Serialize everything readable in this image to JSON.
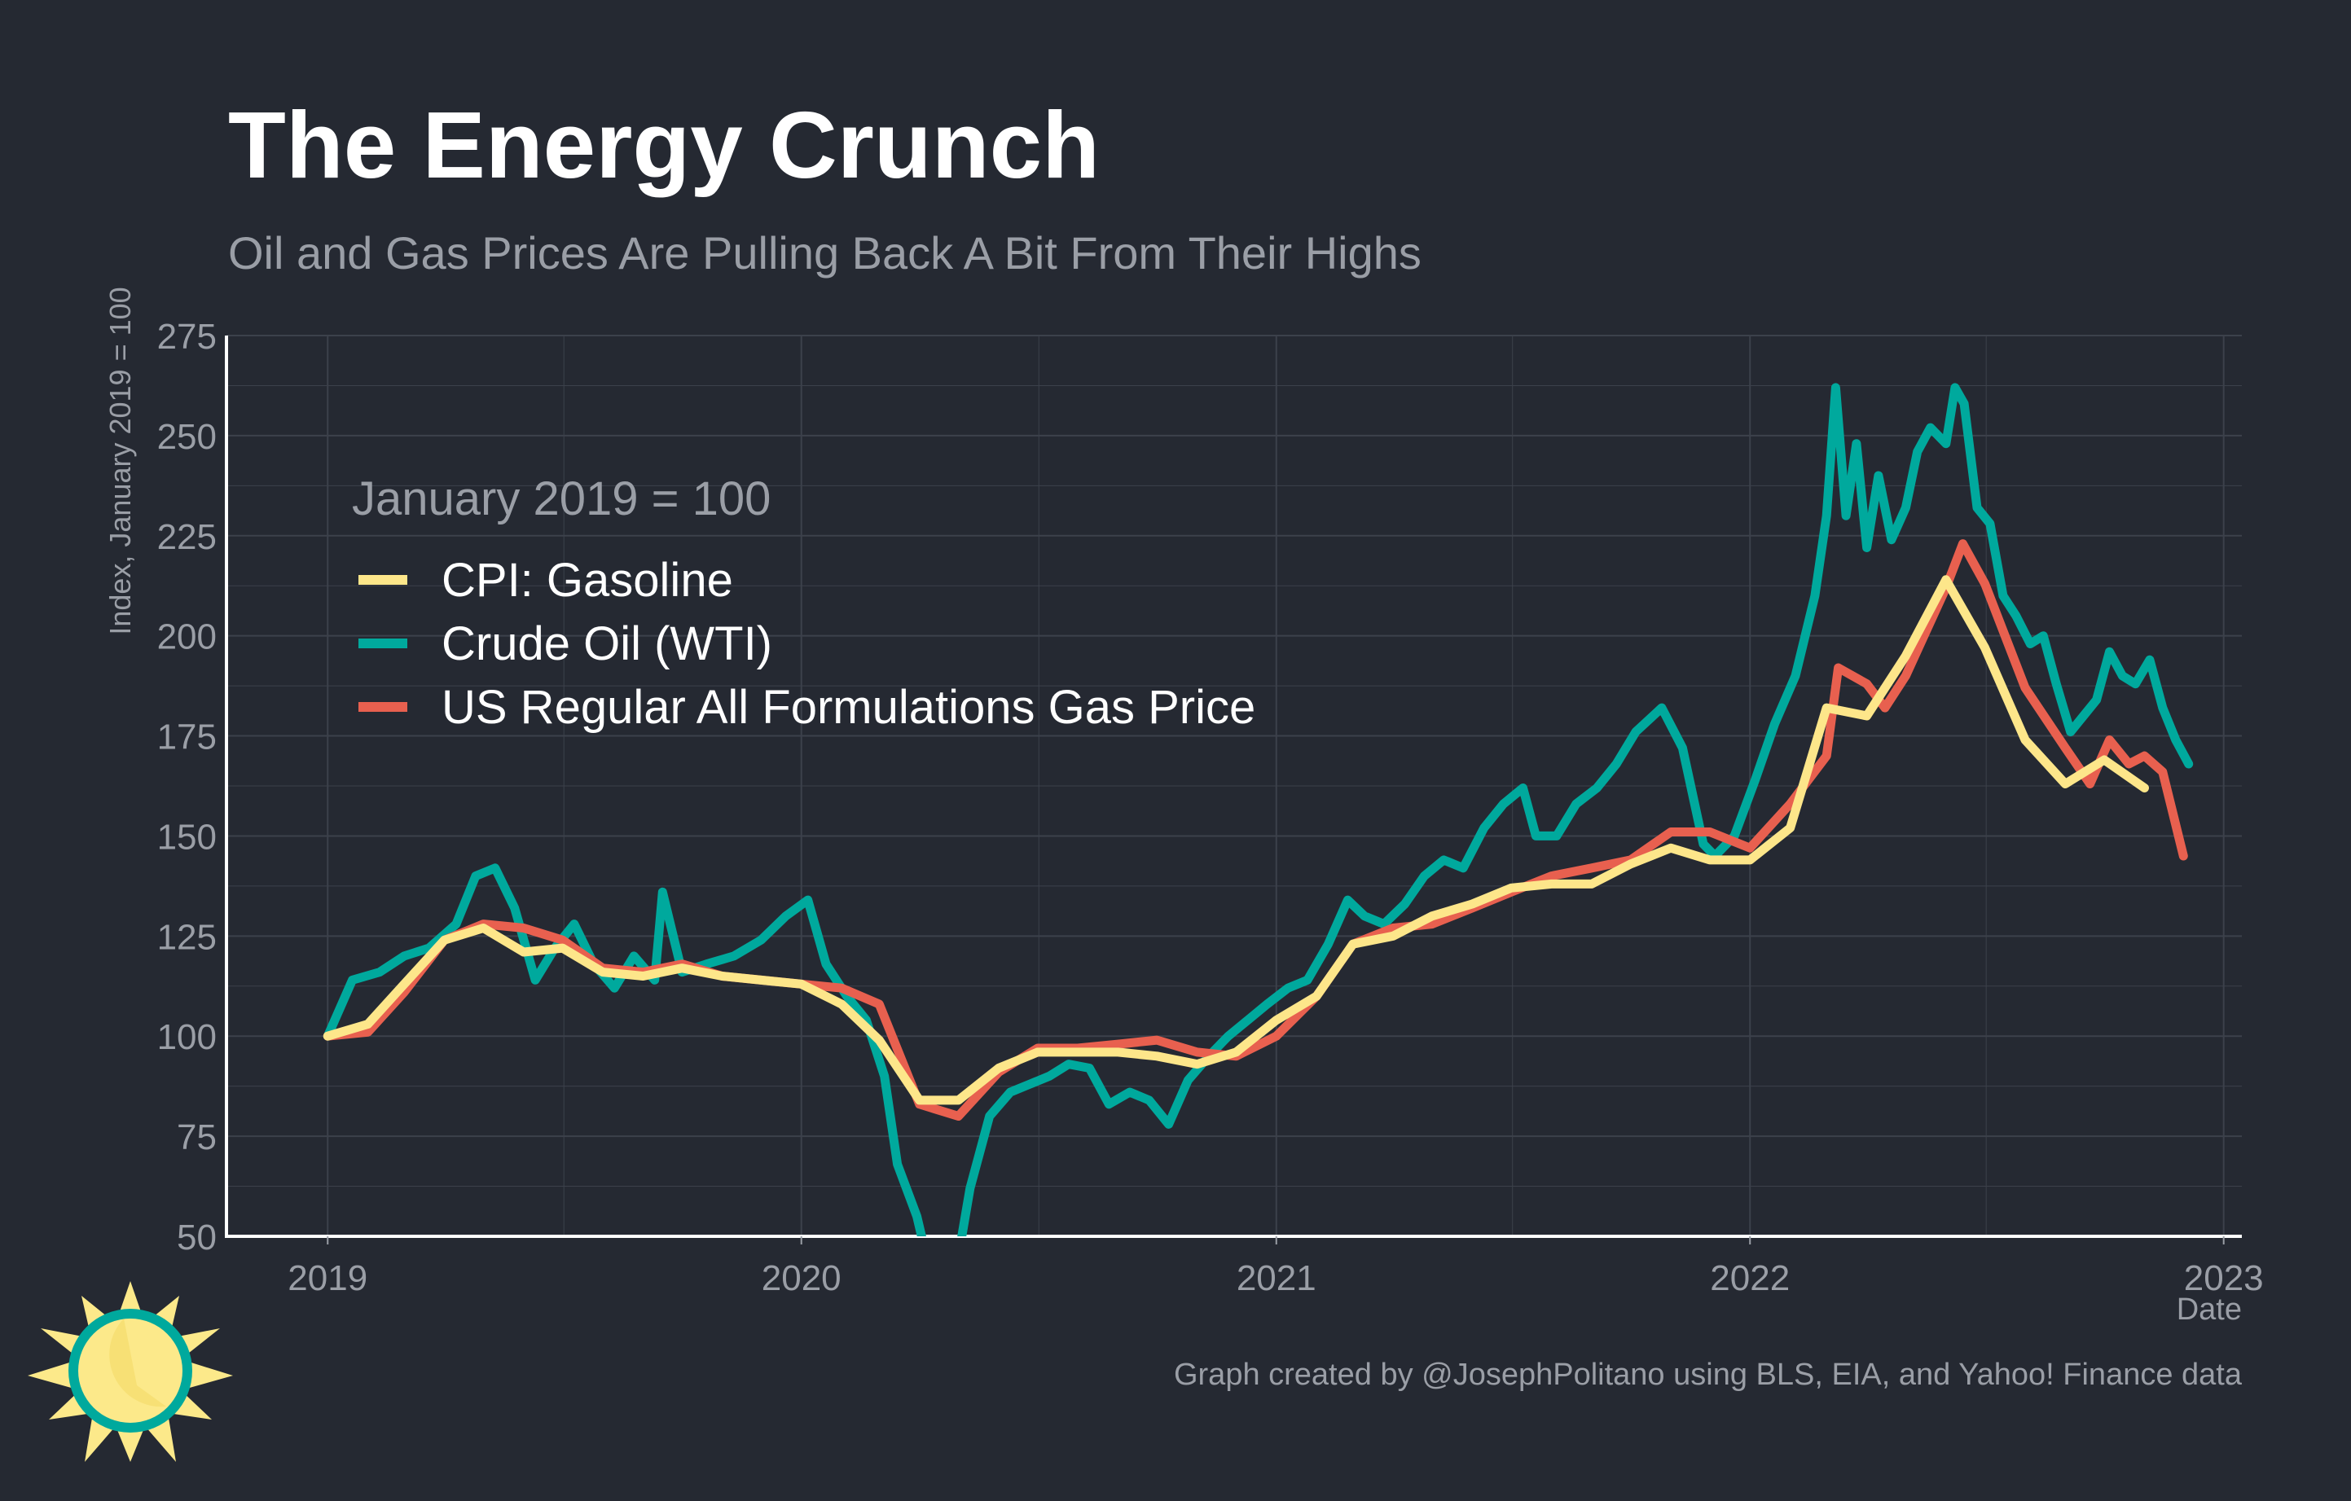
{
  "chart_data": {
    "type": "line",
    "title": "The Energy Crunch",
    "subtitle": "Oil and Gas Prices Are Pulling Back A Bit From Their Highs",
    "xlabel": "Date",
    "ylabel": "Index, January 2019 = 100",
    "legend_title": "January 2019 = 100",
    "legend_position": "top-left inside",
    "caption": "Graph created by @JosephPolitano using BLS, EIA, and Yahoo! Finance data",
    "xlim": [
      "2018-10-15",
      "2023-01-15"
    ],
    "ylim": [
      50,
      275
    ],
    "x_ticks": [
      "2019",
      "2020",
      "2021",
      "2022",
      "2023"
    ],
    "y_ticks": [
      50,
      75,
      100,
      125,
      150,
      175,
      200,
      225,
      250,
      275
    ],
    "grid": true,
    "colors": {
      "background": "#252932",
      "grid": "#3c414b",
      "axis": "#ffffff",
      "muted_text": "#9a9ea6",
      "logo_sun": "#fce98a",
      "logo_ring": "#00a99d"
    },
    "series": [
      {
        "name": "CPI: Gasoline",
        "color": "#fde68a",
        "x": [
          "2019-01-01",
          "2019-02-01",
          "2019-03-01",
          "2019-04-01",
          "2019-05-01",
          "2019-06-01",
          "2019-07-01",
          "2019-08-01",
          "2019-09-01",
          "2019-10-01",
          "2019-11-01",
          "2019-12-01",
          "2020-01-01",
          "2020-02-01",
          "2020-03-01",
          "2020-04-01",
          "2020-05-01",
          "2020-06-01",
          "2020-07-01",
          "2020-08-01",
          "2020-09-01",
          "2020-10-01",
          "2020-11-01",
          "2020-12-01",
          "2021-01-01",
          "2021-02-01",
          "2021-03-01",
          "2021-04-01",
          "2021-05-01",
          "2021-06-01",
          "2021-07-01",
          "2021-08-01",
          "2021-09-01",
          "2021-10-01",
          "2021-11-01",
          "2021-12-01",
          "2022-01-01",
          "2022-02-01",
          "2022-03-01",
          "2022-04-01",
          "2022-05-01",
          "2022-06-01",
          "2022-07-01",
          "2022-08-01",
          "2022-09-01",
          "2022-10-01",
          "2022-11-01"
        ],
        "values": [
          100,
          103,
          113,
          124,
          127,
          121,
          122,
          116,
          115,
          117,
          115,
          114,
          113,
          108,
          99,
          84,
          84,
          92,
          96,
          96,
          96,
          95,
          93,
          96,
          104,
          110,
          123,
          125,
          130,
          133,
          137,
          138,
          138,
          143,
          147,
          144,
          144,
          152,
          182,
          180,
          195,
          214,
          197,
          174,
          163,
          169,
          162
        ]
      },
      {
        "name": "Crude Oil (WTI)",
        "color": "#00a99d",
        "x": [
          "2019-01-01",
          "2019-01-20",
          "2019-02-10",
          "2019-03-01",
          "2019-03-20",
          "2019-04-10",
          "2019-04-25",
          "2019-05-10",
          "2019-05-25",
          "2019-06-10",
          "2019-06-25",
          "2019-07-10",
          "2019-07-25",
          "2019-08-10",
          "2019-08-25",
          "2019-09-10",
          "2019-09-16",
          "2019-10-01",
          "2019-10-20",
          "2019-11-10",
          "2019-12-01",
          "2019-12-20",
          "2020-01-06",
          "2020-01-20",
          "2020-02-05",
          "2020-02-20",
          "2020-03-05",
          "2020-03-15",
          "2020-03-30",
          "2020-04-10",
          "2020-04-20",
          "2020-05-01",
          "2020-05-10",
          "2020-05-25",
          "2020-06-10",
          "2020-06-25",
          "2020-07-10",
          "2020-07-25",
          "2020-08-10",
          "2020-08-25",
          "2020-09-10",
          "2020-09-25",
          "2020-10-10",
          "2020-10-25",
          "2020-11-10",
          "2020-11-25",
          "2020-12-10",
          "2020-12-25",
          "2021-01-10",
          "2021-01-25",
          "2021-02-10",
          "2021-02-25",
          "2021-03-10",
          "2021-03-25",
          "2021-04-10",
          "2021-04-25",
          "2021-05-10",
          "2021-05-25",
          "2021-06-10",
          "2021-06-25",
          "2021-07-10",
          "2021-07-20",
          "2021-08-05",
          "2021-08-20",
          "2021-09-05",
          "2021-09-20",
          "2021-10-05",
          "2021-10-25",
          "2021-11-10",
          "2021-11-26",
          "2021-12-05",
          "2021-12-20",
          "2022-01-05",
          "2022-01-20",
          "2022-02-05",
          "2022-02-20",
          "2022-03-01",
          "2022-03-08",
          "2022-03-16",
          "2022-03-24",
          "2022-04-01",
          "2022-04-10",
          "2022-04-20",
          "2022-05-01",
          "2022-05-10",
          "2022-05-20",
          "2022-06-01",
          "2022-06-08",
          "2022-06-15",
          "2022-06-25",
          "2022-07-05",
          "2022-07-15",
          "2022-07-25",
          "2022-08-05",
          "2022-08-15",
          "2022-08-25",
          "2022-09-05",
          "2022-09-15",
          "2022-09-25",
          "2022-10-05",
          "2022-10-15",
          "2022-10-25",
          "2022-11-05",
          "2022-11-15",
          "2022-11-25",
          "2022-12-05"
        ],
        "values": [
          100,
          114,
          116,
          120,
          122,
          128,
          140,
          142,
          132,
          114,
          122,
          128,
          118,
          112,
          120,
          114,
          136,
          116,
          118,
          120,
          124,
          130,
          134,
          118,
          110,
          104,
          90,
          68,
          55,
          40,
          25,
          45,
          62,
          80,
          86,
          88,
          90,
          93,
          92,
          83,
          86,
          84,
          78,
          89,
          95,
          100,
          104,
          108,
          112,
          114,
          123,
          134,
          130,
          128,
          133,
          140,
          144,
          142,
          152,
          158,
          162,
          150,
          150,
          158,
          162,
          168,
          176,
          182,
          172,
          148,
          145,
          150,
          164,
          178,
          190,
          210,
          230,
          262,
          230,
          248,
          222,
          240,
          224,
          232,
          246,
          252,
          248,
          262,
          258,
          232,
          228,
          210,
          205,
          198,
          200,
          188,
          176,
          180,
          184,
          196,
          190,
          188,
          194,
          182,
          174,
          168
        ]
      },
      {
        "name": "US Regular All Formulations Gas Price",
        "color": "#e8604f",
        "x": [
          "2019-01-01",
          "2019-02-01",
          "2019-03-01",
          "2019-04-01",
          "2019-05-01",
          "2019-06-01",
          "2019-07-01",
          "2019-08-01",
          "2019-09-01",
          "2019-10-01",
          "2019-11-01",
          "2019-12-01",
          "2020-01-01",
          "2020-02-01",
          "2020-03-01",
          "2020-04-01",
          "2020-05-01",
          "2020-06-01",
          "2020-07-01",
          "2020-08-01",
          "2020-09-01",
          "2020-10-01",
          "2020-11-01",
          "2020-12-01",
          "2021-01-01",
          "2021-02-01",
          "2021-03-01",
          "2021-04-01",
          "2021-05-01",
          "2021-06-01",
          "2021-07-01",
          "2021-08-01",
          "2021-09-01",
          "2021-10-01",
          "2021-11-01",
          "2021-12-01",
          "2022-01-01",
          "2022-02-01",
          "2022-03-01",
          "2022-03-10",
          "2022-04-01",
          "2022-04-15",
          "2022-05-01",
          "2022-06-01",
          "2022-06-14",
          "2022-07-01",
          "2022-08-01",
          "2022-09-01",
          "2022-09-20",
          "2022-10-05",
          "2022-10-20",
          "2022-11-01",
          "2022-11-15",
          "2022-12-01"
        ],
        "values": [
          100,
          101,
          111,
          124,
          128,
          127,
          124,
          117,
          116,
          118,
          115,
          114,
          113,
          112,
          108,
          83,
          80,
          91,
          97,
          97,
          98,
          99,
          96,
          95,
          100,
          110,
          123,
          127,
          128,
          132,
          136,
          140,
          142,
          144,
          151,
          151,
          147,
          158,
          170,
          192,
          188,
          182,
          190,
          212,
          223,
          213,
          187,
          172,
          163,
          174,
          168,
          170,
          166,
          145
        ]
      }
    ]
  }
}
